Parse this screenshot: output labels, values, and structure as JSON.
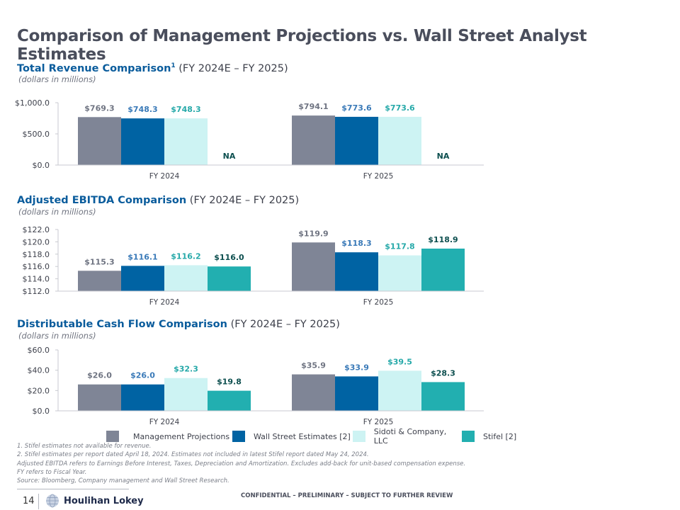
{
  "title": "Comparison of Management Projections vs. Wall Street Analyst Estimates",
  "colors": {
    "management": "#7f8596",
    "wall_street": "#0063a3",
    "sidoti": "#cdf3f3",
    "stifel": "#22afb0",
    "label_management": "#6f7482",
    "label_wall_street": "#3a7ab8",
    "label_sidoti": "#26a9a9",
    "label_stifel": "#0d4f4f"
  },
  "sections": [
    {
      "heading": "Total Revenue Comparison",
      "sup": "1",
      "range": " (FY 2024E – FY 2025)",
      "unit": "(dollars in millions)"
    },
    {
      "heading": "Adjusted EBITDA Comparison",
      "range": " (FY 2024E – FY 2025)",
      "unit": "(dollars in millions)"
    },
    {
      "heading": "Distributable Cash Flow Comparison",
      "range": " (FY 2024E – FY 2025)",
      "unit": "(dollars in millions)"
    }
  ],
  "chart_data": [
    {
      "type": "bar",
      "title": "Total Revenue Comparison",
      "categories": [
        "FY 2024",
        "FY 2025"
      ],
      "ylim": [
        0,
        1000
      ],
      "yticks": [
        "$1,000.0",
        "$500.0",
        "$0.0"
      ],
      "ytick_values": [
        1000,
        500,
        0
      ],
      "series": [
        {
          "name": "Management Projections",
          "values": [
            769.3,
            794.1
          ],
          "labels": [
            "$769.3",
            "$794.1"
          ]
        },
        {
          "name": "Wall Street Estimates [2]",
          "values": [
            748.3,
            773.6
          ],
          "labels": [
            "$748.3",
            "$773.6"
          ]
        },
        {
          "name": "Sidoti & Company, LLC",
          "values": [
            748.3,
            773.6
          ],
          "labels": [
            "$748.3",
            "$773.6"
          ]
        },
        {
          "name": "Stifel [2]",
          "values": [
            null,
            null
          ],
          "labels": [
            "NA",
            "NA"
          ]
        }
      ]
    },
    {
      "type": "bar",
      "title": "Adjusted EBITDA Comparison",
      "categories": [
        "FY 2024",
        "FY 2025"
      ],
      "ylim": [
        112,
        122
      ],
      "yticks": [
        "$122.0",
        "$120.0",
        "$118.0",
        "$116.0",
        "$114.0",
        "$112.0"
      ],
      "ytick_values": [
        122,
        120,
        118,
        116,
        114,
        112
      ],
      "series": [
        {
          "name": "Management Projections",
          "values": [
            115.3,
            119.9
          ],
          "labels": [
            "$115.3",
            "$119.9"
          ]
        },
        {
          "name": "Wall Street Estimates [2]",
          "values": [
            116.1,
            118.3
          ],
          "labels": [
            "$116.1",
            "$118.3"
          ]
        },
        {
          "name": "Sidoti & Company, LLC",
          "values": [
            116.2,
            117.8
          ],
          "labels": [
            "$116.2",
            "$117.8"
          ]
        },
        {
          "name": "Stifel [2]",
          "values": [
            116.0,
            118.9
          ],
          "labels": [
            "$116.0",
            "$118.9"
          ]
        }
      ]
    },
    {
      "type": "bar",
      "title": "Distributable Cash Flow Comparison",
      "categories": [
        "FY 2024",
        "FY 2025"
      ],
      "ylim": [
        0,
        60
      ],
      "yticks": [
        "$60.0",
        "$40.0",
        "$20.0",
        "$0.0"
      ],
      "ytick_values": [
        60,
        40,
        20,
        0
      ],
      "series": [
        {
          "name": "Management Projections",
          "values": [
            26.0,
            35.9
          ],
          "labels": [
            "$26.0",
            "$35.9"
          ]
        },
        {
          "name": "Wall Street Estimates [2]",
          "values": [
            26.0,
            33.9
          ],
          "labels": [
            "$26.0",
            "$33.9"
          ]
        },
        {
          "name": "Sidoti & Company, LLC",
          "values": [
            32.3,
            39.5
          ],
          "labels": [
            "$32.3",
            "$39.5"
          ]
        },
        {
          "name": "Stifel [2]",
          "values": [
            19.8,
            28.3
          ],
          "labels": [
            "$19.8",
            "$28.3"
          ]
        }
      ]
    }
  ],
  "legend": [
    "Management Projections",
    "Wall Street Estimates [2]",
    "Sidoti & Company, LLC",
    "Stifel [2]"
  ],
  "notes": [
    "1. Stifel estimates not available for revenue.",
    "2. Stifel estimates per report dated April 18, 2024. Estimates not included in latest Stifel report dated May 24, 2024.",
    "Adjusted EBITDA refers to Earnings Before Interest, Taxes, Depreciation and Amortization. Excludes add-back for unit-based compensation expense.",
    "FY refers to Fiscal Year.",
    "Source: Bloomberg, Company management and Wall Street Research."
  ],
  "footer": {
    "page": "14",
    "logo": "Houlihan Lokey",
    "confidential": "CONFIDENTIAL – PRELIMINARY – SUBJECT TO FURTHER REVIEW"
  }
}
